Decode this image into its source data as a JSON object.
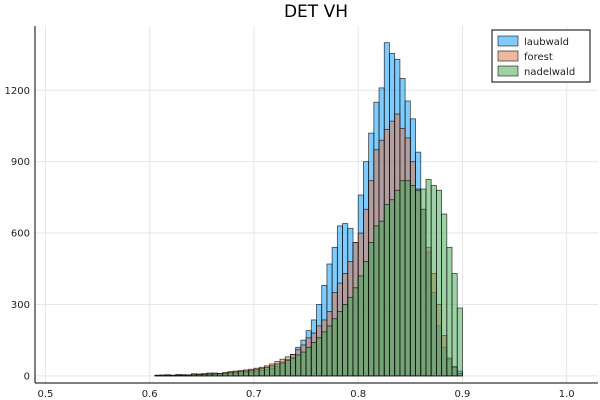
{
  "chart_data": {
    "type": "bar",
    "title": "DET VH",
    "xlabel": "",
    "ylabel": "",
    "xlim": [
      0.49,
      1.03
    ],
    "ylim": [
      -30,
      1470
    ],
    "xticks": [
      0.5,
      0.6,
      0.7,
      0.8,
      0.9,
      1.0
    ],
    "xtick_labels": [
      "0.5",
      "0.6",
      "0.7",
      "0.8",
      "0.9",
      "1.0"
    ],
    "yticks": [
      0,
      300,
      600,
      900,
      1200
    ],
    "ytick_labels": [
      "0",
      "300",
      "600",
      "900",
      "1200"
    ],
    "grid": true,
    "legend_position": "top-right",
    "bin_width": 0.005,
    "bin_start": 0.52,
    "series": [
      {
        "name": "laubwald",
        "color": "#009AFA",
        "values": [
          0,
          0,
          0,
          0,
          0,
          0,
          0,
          0,
          0,
          0,
          0,
          0,
          0,
          0,
          0,
          0,
          0,
          1,
          1,
          1,
          1,
          2,
          2,
          2,
          3,
          3,
          4,
          5,
          6,
          7,
          8,
          9,
          10,
          12,
          14,
          16,
          18,
          22,
          26,
          32,
          40,
          52,
          68,
          90,
          120,
          150,
          190,
          235,
          300,
          380,
          470,
          540,
          630,
          640,
          620,
          560,
          760,
          900,
          1020,
          1150,
          1210,
          1400,
          1355,
          1330,
          1250,
          1155,
          1080,
          940,
          700,
          520,
          350,
          210,
          120,
          70,
          40,
          20
        ]
      },
      {
        "name": "forest",
        "color": "#E26F46",
        "values": [
          0,
          0,
          0,
          0,
          0,
          0,
          0,
          0,
          0,
          0,
          0,
          0,
          0,
          0,
          0,
          0,
          0,
          3,
          4,
          5,
          3,
          6,
          5,
          4,
          9,
          8,
          10,
          12,
          12,
          10,
          14,
          18,
          20,
          22,
          25,
          28,
          32,
          36,
          42,
          50,
          60,
          70,
          80,
          90,
          110,
          130,
          160,
          180,
          210,
          235,
          270,
          350,
          390,
          430,
          480,
          560,
          600,
          700,
          820,
          950,
          990,
          1035,
          1070,
          1100,
          1040,
          1000,
          900,
          785,
          700,
          540,
          430,
          300,
          170,
          75,
          35,
          10
        ]
      },
      {
        "name": "nadelwald",
        "color": "#3DA44D",
        "values": [
          0,
          0,
          0,
          0,
          0,
          0,
          0,
          0,
          0,
          0,
          0,
          0,
          0,
          0,
          0,
          0,
          0,
          1,
          1,
          2,
          2,
          3,
          3,
          4,
          5,
          6,
          7,
          8,
          9,
          10,
          12,
          14,
          16,
          18,
          20,
          22,
          26,
          30,
          36,
          42,
          50,
          58,
          66,
          75,
          88,
          100,
          120,
          140,
          160,
          185,
          210,
          240,
          270,
          300,
          330,
          370,
          420,
          480,
          560,
          630,
          650,
          720,
          740,
          780,
          820,
          820,
          800,
          780,
          785,
          825,
          800,
          780,
          680,
          540,
          430,
          285
        ]
      }
    ]
  }
}
